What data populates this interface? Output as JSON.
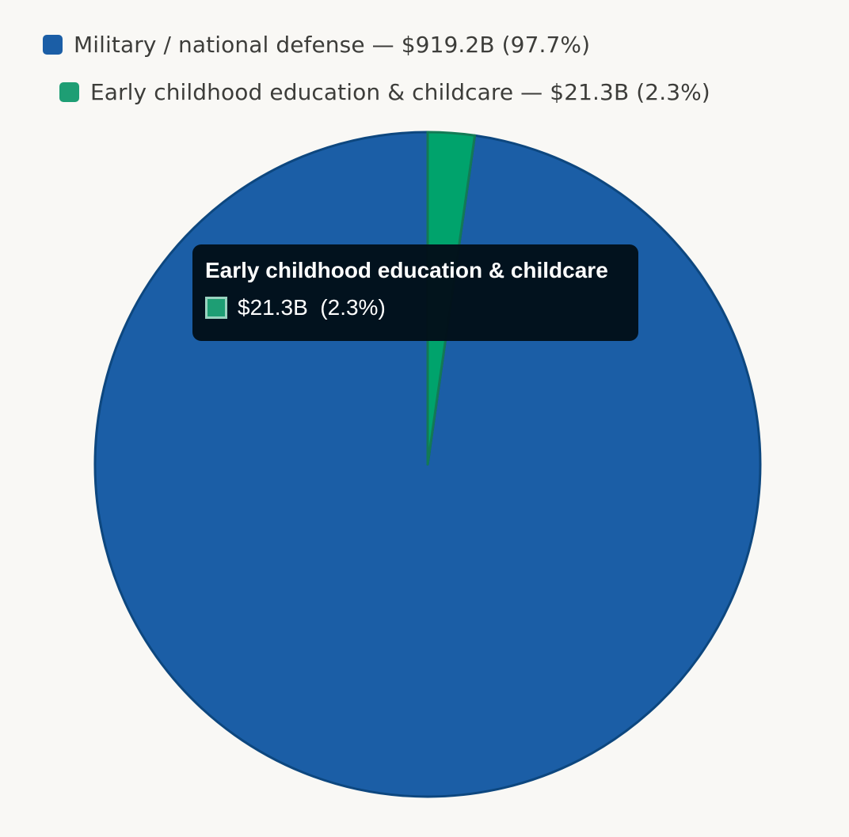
{
  "chart_data": {
    "type": "pie",
    "title": "",
    "categories": [
      "Military / national defense",
      "Early childhood education & childcare"
    ],
    "values": [
      919.2,
      21.3
    ],
    "percentages": [
      97.7,
      2.3
    ],
    "colors": [
      "#1b5ea6",
      "#1e9e74"
    ],
    "legend_placement": "top",
    "legend": [
      "Military / national defense — $919.2B (97.7%)",
      "Early childhood education & childcare — $21.3B (2.3%)"
    ]
  },
  "highlight": {
    "index": 1,
    "color": "#00a36c"
  },
  "tooltip": {
    "title": "Early childhood education & childcare",
    "value": "$21.3B  (2.3%)"
  }
}
